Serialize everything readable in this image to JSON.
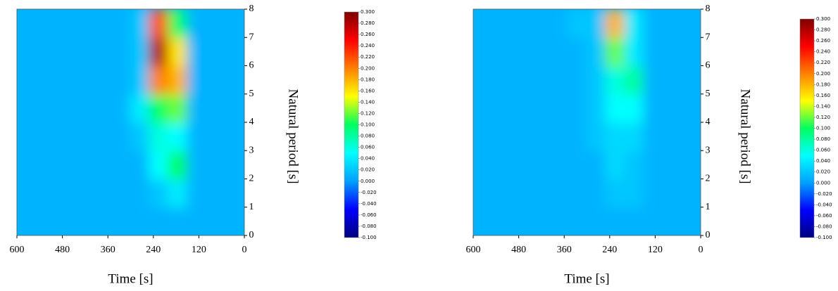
{
  "chart_data": [
    {
      "type": "heatmap",
      "x_label": "Time [s]",
      "y_label": "Natural period [s]",
      "x_bins": [
        600,
        550,
        500,
        450,
        400,
        350,
        300,
        250,
        200,
        150,
        100,
        50,
        0
      ],
      "y_bins": [
        0,
        1,
        2,
        3,
        4,
        5,
        6,
        7,
        8
      ],
      "values": [
        [
          0.01,
          0.01,
          0.01,
          0.01,
          0.01,
          0.01,
          0.01,
          0.01,
          0.01,
          0.01,
          0.01,
          0.01
        ],
        [
          0.01,
          0.01,
          0.01,
          0.01,
          0.01,
          0.01,
          0.01,
          0.02,
          0.04,
          0.01,
          0.01,
          0.01
        ],
        [
          0.01,
          0.01,
          0.01,
          0.01,
          0.01,
          0.01,
          0.01,
          0.05,
          0.1,
          0.01,
          0.01,
          0.01
        ],
        [
          0.01,
          0.01,
          0.01,
          0.01,
          0.01,
          0.01,
          0.02,
          0.06,
          0.05,
          0.01,
          0.01,
          0.01
        ],
        [
          0.01,
          0.01,
          0.01,
          0.01,
          0.01,
          0.01,
          0.04,
          0.1,
          0.12,
          0.01,
          0.01,
          0.01
        ],
        [
          0.01,
          0.01,
          0.01,
          0.01,
          0.01,
          0.01,
          0.02,
          0.2,
          0.18,
          0.01,
          0.01,
          0.01
        ],
        [
          0.01,
          0.01,
          0.01,
          0.01,
          0.01,
          0.01,
          0.02,
          0.28,
          0.16,
          0.01,
          0.01,
          0.01
        ],
        [
          0.01,
          0.01,
          0.01,
          0.01,
          0.01,
          0.01,
          0.02,
          0.22,
          0.1,
          0.01,
          0.01,
          0.01
        ]
      ],
      "xlim": [
        600,
        0
      ],
      "ylim": [
        0,
        8
      ],
      "xticks": [
        600,
        480,
        360,
        240,
        120,
        0
      ],
      "yticks": [
        0,
        1,
        2,
        3,
        4,
        5,
        6,
        7,
        8
      ],
      "colormap": [
        "#00007f",
        "#0000ff",
        "#00a0ff",
        "#00ffff",
        "#00ff60",
        "#ffff00",
        "#ff8000",
        "#ff0000",
        "#7f0000"
      ],
      "clim": [
        -0.1,
        0.3
      ],
      "cticks": [
        {
          "value": 0.3,
          "label": "0.300"
        },
        {
          "value": 0.28,
          "label": "0.280"
        },
        {
          "value": 0.26,
          "label": "0.260"
        },
        {
          "value": 0.24,
          "label": "0.240"
        },
        {
          "value": 0.22,
          "label": "0.220"
        },
        {
          "value": 0.2,
          "label": "0.200"
        },
        {
          "value": 0.18,
          "label": "0.180"
        },
        {
          "value": 0.16,
          "label": "0.160"
        },
        {
          "value": 0.14,
          "label": "0.140"
        },
        {
          "value": 0.12,
          "label": "0.120"
        },
        {
          "value": 0.1,
          "label": "0.100"
        },
        {
          "value": 0.08,
          "label": "0.080"
        },
        {
          "value": 0.06,
          "label": "0.060"
        },
        {
          "value": 0.04,
          "label": "0.040"
        },
        {
          "value": 0.02,
          "label": "0.020"
        },
        {
          "value": 0,
          "label": "0.000"
        },
        {
          "value": -0.02,
          "label": "-0.020"
        },
        {
          "value": -0.04,
          "label": "-0.040"
        },
        {
          "value": -0.06,
          "label": "-0.060"
        },
        {
          "value": -0.08,
          "label": "-0.080"
        },
        {
          "value": -0.1,
          "label": "-0.100"
        }
      ]
    },
    {
      "type": "heatmap",
      "x_label": "Time [s]",
      "y_label": "Natural period [s]",
      "x_bins": [
        600,
        550,
        500,
        450,
        400,
        350,
        300,
        250,
        200,
        150,
        100,
        50,
        0
      ],
      "y_bins": [
        0,
        1,
        2,
        3,
        4,
        5,
        6,
        7,
        8
      ],
      "values": [
        [
          0.01,
          0.01,
          0.01,
          0.01,
          0.01,
          0.01,
          0.01,
          0.01,
          0.01,
          0.01,
          0.01,
          0.01
        ],
        [
          0.01,
          0.01,
          0.01,
          0.01,
          0.01,
          0.01,
          0.01,
          0.02,
          0.02,
          0.01,
          0.01,
          0.01
        ],
        [
          0.01,
          0.01,
          0.01,
          0.01,
          0.01,
          0.01,
          0.01,
          0.03,
          0.02,
          0.01,
          0.01,
          0.01
        ],
        [
          0.01,
          0.01,
          0.01,
          0.01,
          0.01,
          0.01,
          0.02,
          0.03,
          0.03,
          0.01,
          0.01,
          0.01
        ],
        [
          0.01,
          0.01,
          0.01,
          0.01,
          0.01,
          0.01,
          0.02,
          0.05,
          0.05,
          0.01,
          0.01,
          0.01
        ],
        [
          0.01,
          0.01,
          0.01,
          0.01,
          0.01,
          0.01,
          0.02,
          0.06,
          0.08,
          0.01,
          0.01,
          0.01
        ],
        [
          0.01,
          0.01,
          0.01,
          0.01,
          0.01,
          0.01,
          0.02,
          0.12,
          0.04,
          0.01,
          0.01,
          0.01
        ],
        [
          0.01,
          0.01,
          0.01,
          0.01,
          0.01,
          0.02,
          0.02,
          0.18,
          0.04,
          0.01,
          0.01,
          0.01
        ]
      ],
      "xlim": [
        600,
        0
      ],
      "ylim": [
        0,
        8
      ],
      "xticks": [
        600,
        480,
        360,
        240,
        120,
        0
      ],
      "yticks": [
        0,
        1,
        2,
        3,
        4,
        5,
        6,
        7,
        8
      ],
      "colormap": [
        "#00007f",
        "#0000ff",
        "#00a0ff",
        "#00ffff",
        "#00ff60",
        "#ffff00",
        "#ff8000",
        "#ff0000",
        "#7f0000"
      ],
      "clim": [
        -0.1,
        0.3
      ],
      "cticks": [
        {
          "value": 0.3,
          "label": "0.300"
        },
        {
          "value": 0.28,
          "label": "0.280"
        },
        {
          "value": 0.26,
          "label": "0.260"
        },
        {
          "value": 0.24,
          "label": "0.240"
        },
        {
          "value": 0.22,
          "label": "0.220"
        },
        {
          "value": 0.2,
          "label": "0.200"
        },
        {
          "value": 0.18,
          "label": "0.180"
        },
        {
          "value": 0.16,
          "label": "0.160"
        },
        {
          "value": 0.14,
          "label": "0.140"
        },
        {
          "value": 0.12,
          "label": "0.120"
        },
        {
          "value": 0.1,
          "label": "0.100"
        },
        {
          "value": 0.08,
          "label": "0.080"
        },
        {
          "value": 0.06,
          "label": "0.060"
        },
        {
          "value": 0.04,
          "label": "0.040"
        },
        {
          "value": 0.02,
          "label": "0.020"
        },
        {
          "value": 0,
          "label": "0.000"
        },
        {
          "value": -0.02,
          "label": "-0.020"
        },
        {
          "value": -0.04,
          "label": "-0.040"
        },
        {
          "value": -0.06,
          "label": "-0.060"
        },
        {
          "value": -0.08,
          "label": "-0.080"
        },
        {
          "value": -0.1,
          "label": "-0.100"
        }
      ]
    }
  ]
}
